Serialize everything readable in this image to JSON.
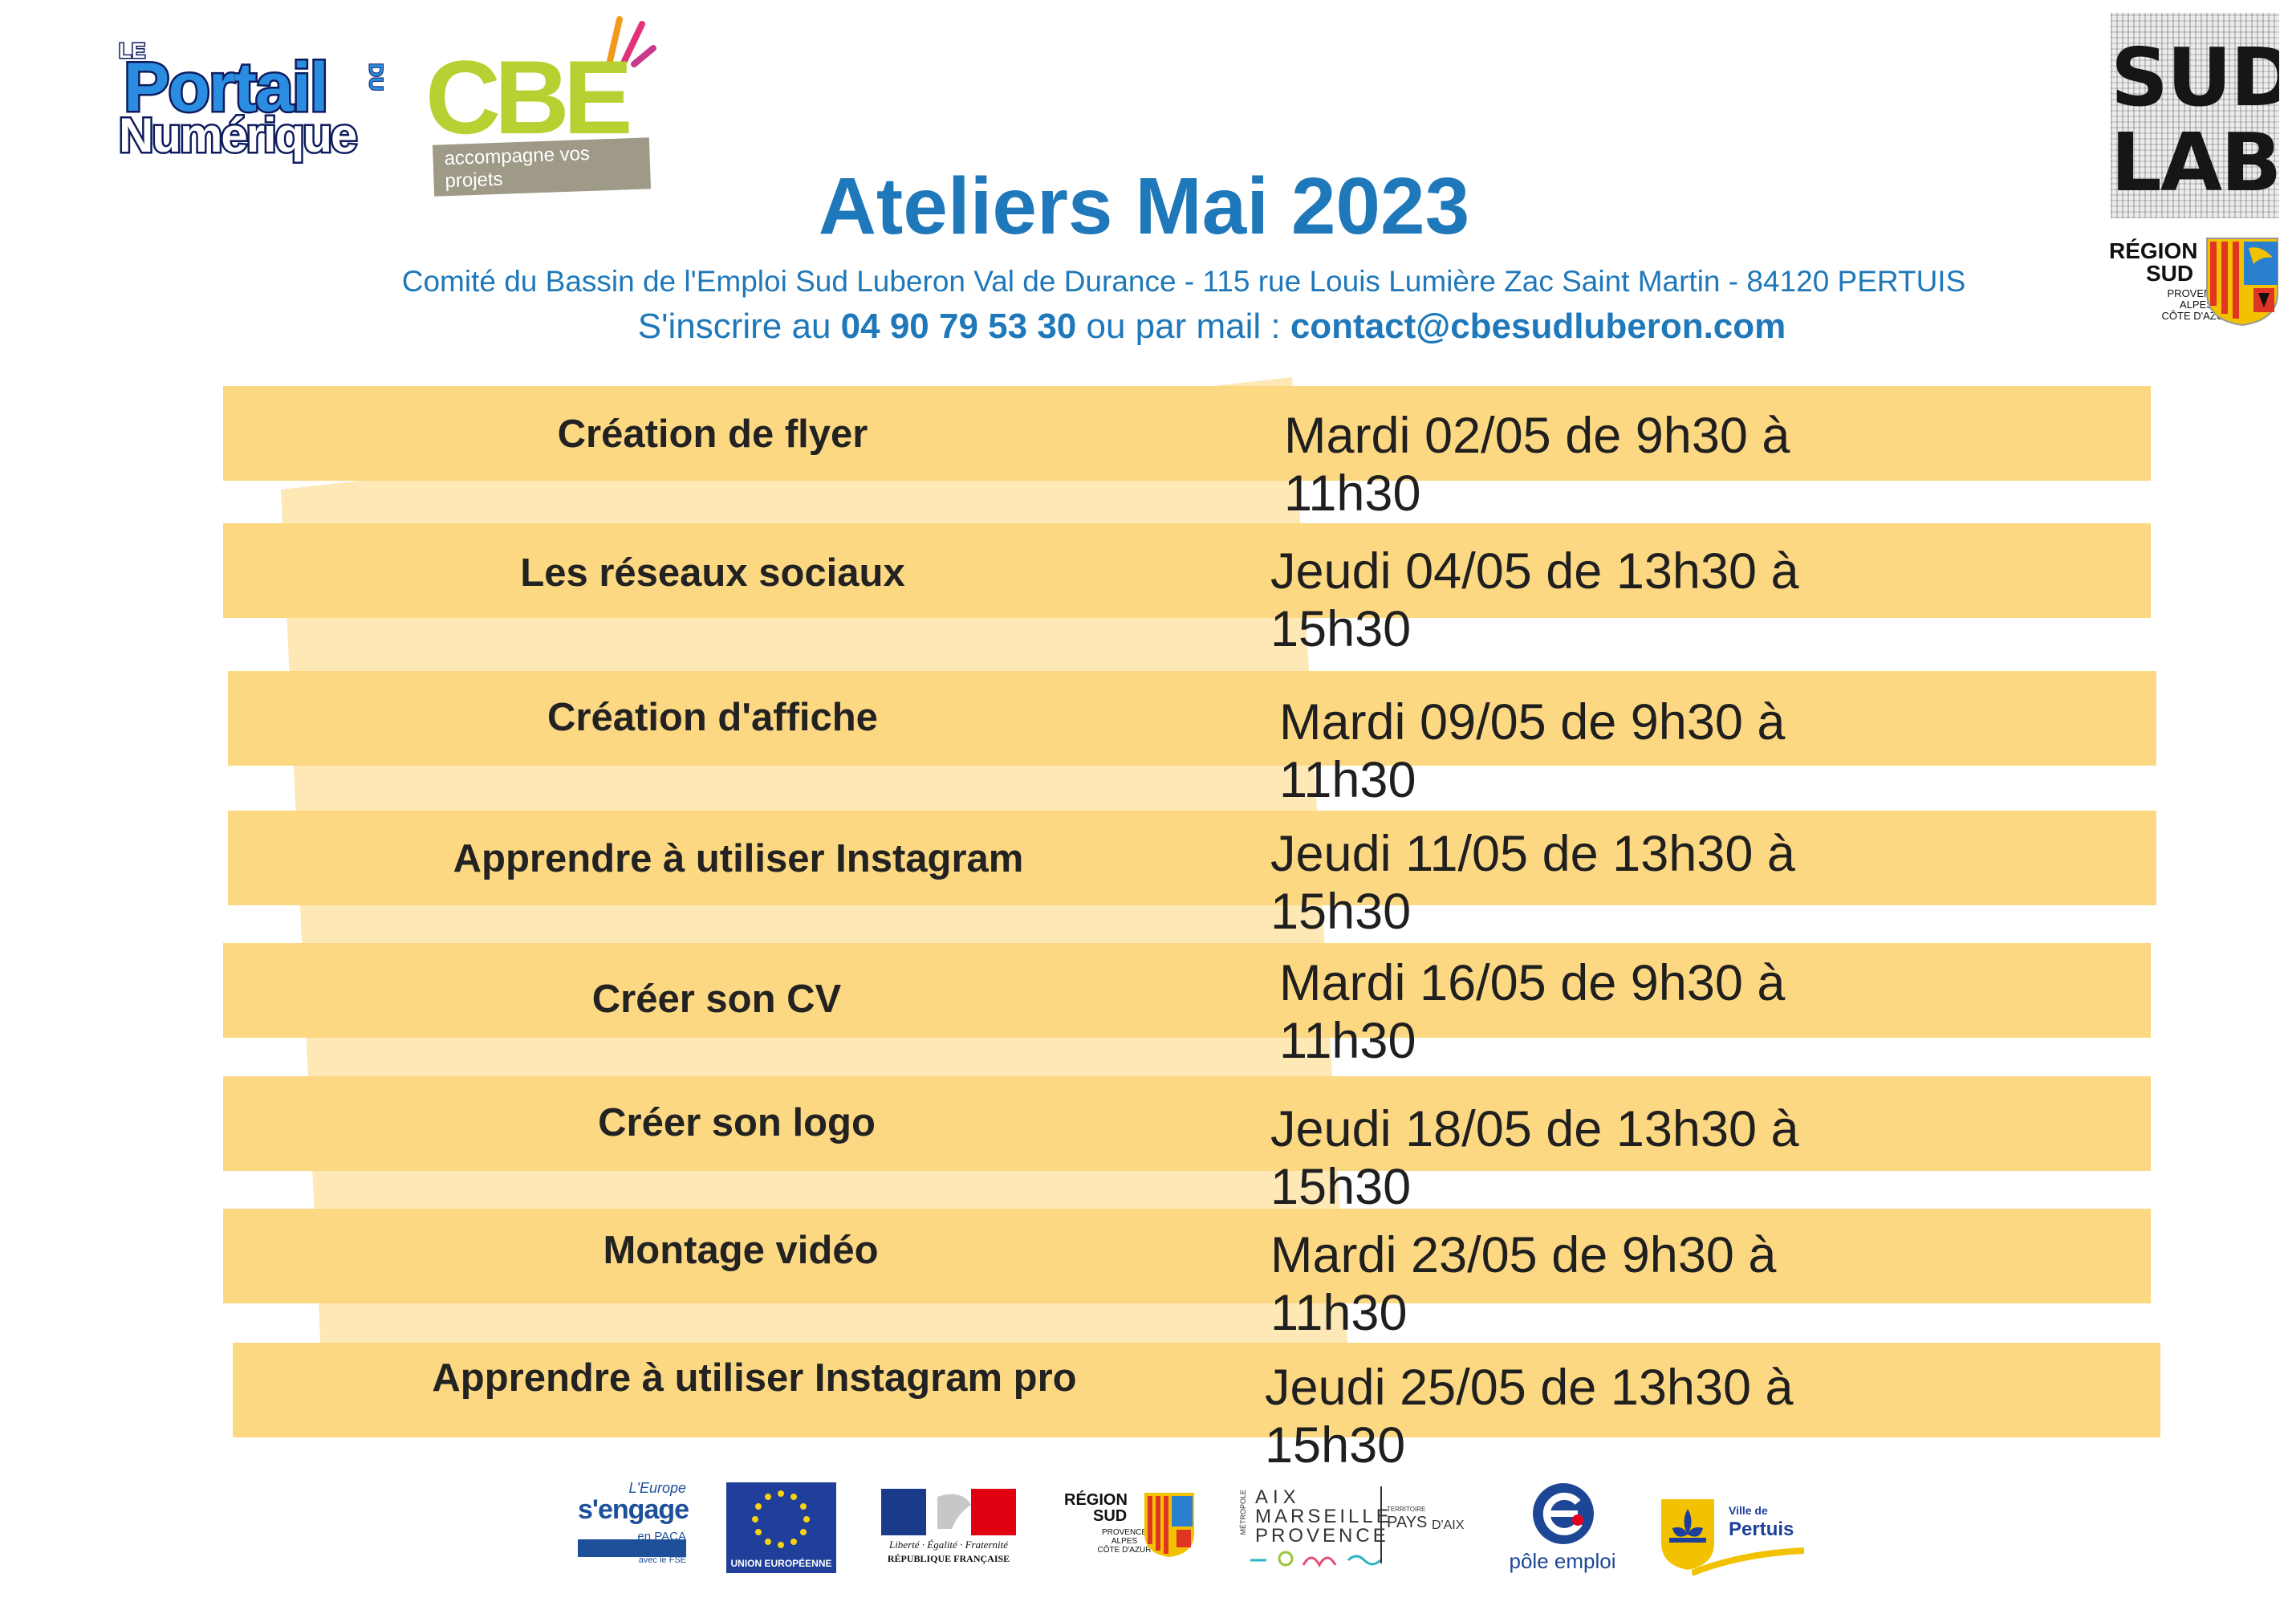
{
  "header": {
    "logo_portail": {
      "le": "LE",
      "portail": "Portail",
      "du": "DU",
      "numerique": "Numérique"
    },
    "logo_cbe": {
      "name": "CBE",
      "tagline": "accompagne vos projets"
    },
    "logo_sudlabs": {
      "line1": "SUD",
      "line2": "LABS"
    },
    "logo_region": {
      "line1": "RÉGION",
      "line2": "SUD",
      "sub": [
        "PROVENCE",
        "ALPES",
        "CÔTE D'AZUR"
      ]
    },
    "title": "Ateliers Mai 2023",
    "address": "Comité du Bassin de l'Emploi Sud Luberon Val de Durance - 115 rue Louis Lumière Zac Saint Martin - 84120 PERTUIS",
    "contact_prefix": "S'inscrire au ",
    "phone": "04 90 79 53 30",
    "contact_middle": " ou par mail : ",
    "email": "contact@cbesudluberon.com"
  },
  "workshops": [
    {
      "title": "Création de flyer",
      "date": "Mardi 02/05 de 9h30 à 11h30"
    },
    {
      "title": "Les réseaux sociaux",
      "date": "Jeudi 04/05 de 13h30 à 15h30"
    },
    {
      "title": "Création d'affiche",
      "date": "Mardi 09/05 de 9h30 à 11h30"
    },
    {
      "title": "Apprendre à utiliser Instagram",
      "date": "Jeudi 11/05 de 13h30 à 15h30"
    },
    {
      "title": "Créer son CV",
      "date": "Mardi 16/05 de 9h30 à 11h30"
    },
    {
      "title": "Créer son logo",
      "date": "Jeudi 18/05 de 13h30 à 15h30"
    },
    {
      "title": "Montage vidéo",
      "date": "Mardi 23/05 de 9h30 à 11h30"
    },
    {
      "title": "Apprendre à utiliser Instagram pro",
      "date": "Jeudi 25/05 de 13h30 à 15h30"
    }
  ],
  "footer": {
    "europe": {
      "l1": "L'Europe",
      "l2": "s'engage",
      "l3": "en PACA",
      "l4": "avec le FSE"
    },
    "eu_label": "UNION EUROPÉENNE",
    "rf": {
      "motto": "Liberté · Égalité · Fraternité",
      "name": "RÉPUBLIQUE FRANÇAISE"
    },
    "region": {
      "l1": "RÉGION",
      "l2": "SUD",
      "sub": [
        "PROVENCE",
        "ALPES",
        "CÔTE D'AZUR"
      ]
    },
    "metropole": {
      "l1": "AIX",
      "l2": "MARSEILLE",
      "l3": "PROVENCE",
      "side": "MÉTROPOLE",
      "terr": "TERRITOIRE",
      "pays": "PAYS",
      "aix": "D'AIX"
    },
    "pole_emploi": "pôle emploi",
    "pertuis": {
      "ville": "Ville de",
      "name": "Pertuis"
    }
  },
  "colors": {
    "row": "#fdd882",
    "band": "#fde8b6",
    "title_blue": "#1f78b9",
    "portail_blue": "#2b8de0",
    "cbe_green": "#b6d132"
  }
}
